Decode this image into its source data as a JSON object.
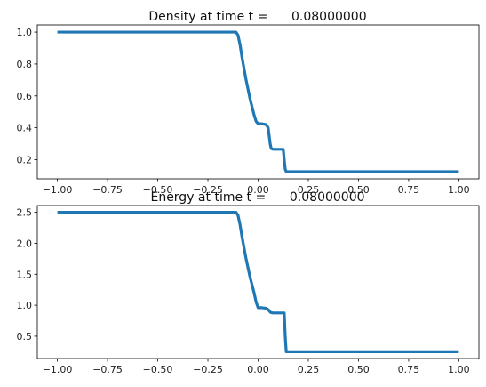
{
  "chart_data": [
    {
      "type": "line",
      "title": "Density at time t =      0.08000000",
      "xlabel": "",
      "ylabel": "",
      "xlim": [
        -1.1,
        1.1
      ],
      "ylim": [
        0.08,
        1.045
      ],
      "xticks": [
        -1.0,
        -0.75,
        -0.5,
        -0.25,
        0.0,
        0.25,
        0.5,
        0.75,
        1.0
      ],
      "xtick_labels": [
        "−1.00",
        "−0.75",
        "−0.50",
        "−0.25",
        "0.00",
        "0.25",
        "0.50",
        "0.75",
        "1.00"
      ],
      "yticks": [
        0.2,
        0.4,
        0.6,
        0.8,
        1.0
      ],
      "ytick_labels": [
        "0.2",
        "0.4",
        "0.6",
        "0.8",
        "1.0"
      ],
      "grid": false,
      "series": [
        {
          "color": "#1f77b4",
          "x": [
            -1.0,
            -0.11,
            -0.1,
            -0.09,
            -0.08,
            -0.06,
            -0.04,
            -0.02,
            -0.01,
            0.0,
            0.02,
            0.04,
            0.05,
            0.055,
            0.06,
            0.065,
            0.075,
            0.08,
            0.09,
            0.1,
            0.12,
            0.125,
            0.13,
            0.135,
            0.14,
            1.0
          ],
          "y": [
            1.0,
            1.0,
            0.98,
            0.92,
            0.84,
            0.7,
            0.58,
            0.48,
            0.44,
            0.425,
            0.425,
            0.42,
            0.4,
            0.35,
            0.3,
            0.27,
            0.265,
            0.265,
            0.265,
            0.265,
            0.265,
            0.265,
            0.2,
            0.14,
            0.125,
            0.125
          ]
        }
      ]
    },
    {
      "type": "line",
      "title": "Energy at time t =      0.08000000",
      "xlabel": "",
      "ylabel": "",
      "xlim": [
        -1.1,
        1.1
      ],
      "ylim": [
        0.14,
        2.61
      ],
      "xticks": [
        -1.0,
        -0.75,
        -0.5,
        -0.25,
        0.0,
        0.25,
        0.5,
        0.75,
        1.0
      ],
      "xtick_labels": [
        "−1.00",
        "−0.75",
        "−0.50",
        "−0.25",
        "0.00",
        "0.25",
        "0.50",
        "0.75",
        "1.00"
      ],
      "yticks": [
        0.5,
        1.0,
        1.5,
        2.0,
        2.5
      ],
      "ytick_labels": [
        "0.5",
        "1.0",
        "1.5",
        "2.0",
        "2.5"
      ],
      "grid": false,
      "series": [
        {
          "color": "#1f77b4",
          "x": [
            -1.0,
            -0.11,
            -0.1,
            -0.09,
            -0.08,
            -0.06,
            -0.04,
            -0.02,
            -0.01,
            0.0,
            0.02,
            0.04,
            0.05,
            0.06,
            0.065,
            0.075,
            0.08,
            0.1,
            0.12,
            0.13,
            0.135,
            0.14,
            1.0
          ],
          "y": [
            2.5,
            2.5,
            2.45,
            2.3,
            2.1,
            1.75,
            1.45,
            1.2,
            1.05,
            0.96,
            0.96,
            0.95,
            0.93,
            0.89,
            0.88,
            0.875,
            0.875,
            0.875,
            0.875,
            0.875,
            0.5,
            0.25,
            0.25
          ]
        }
      ]
    }
  ]
}
